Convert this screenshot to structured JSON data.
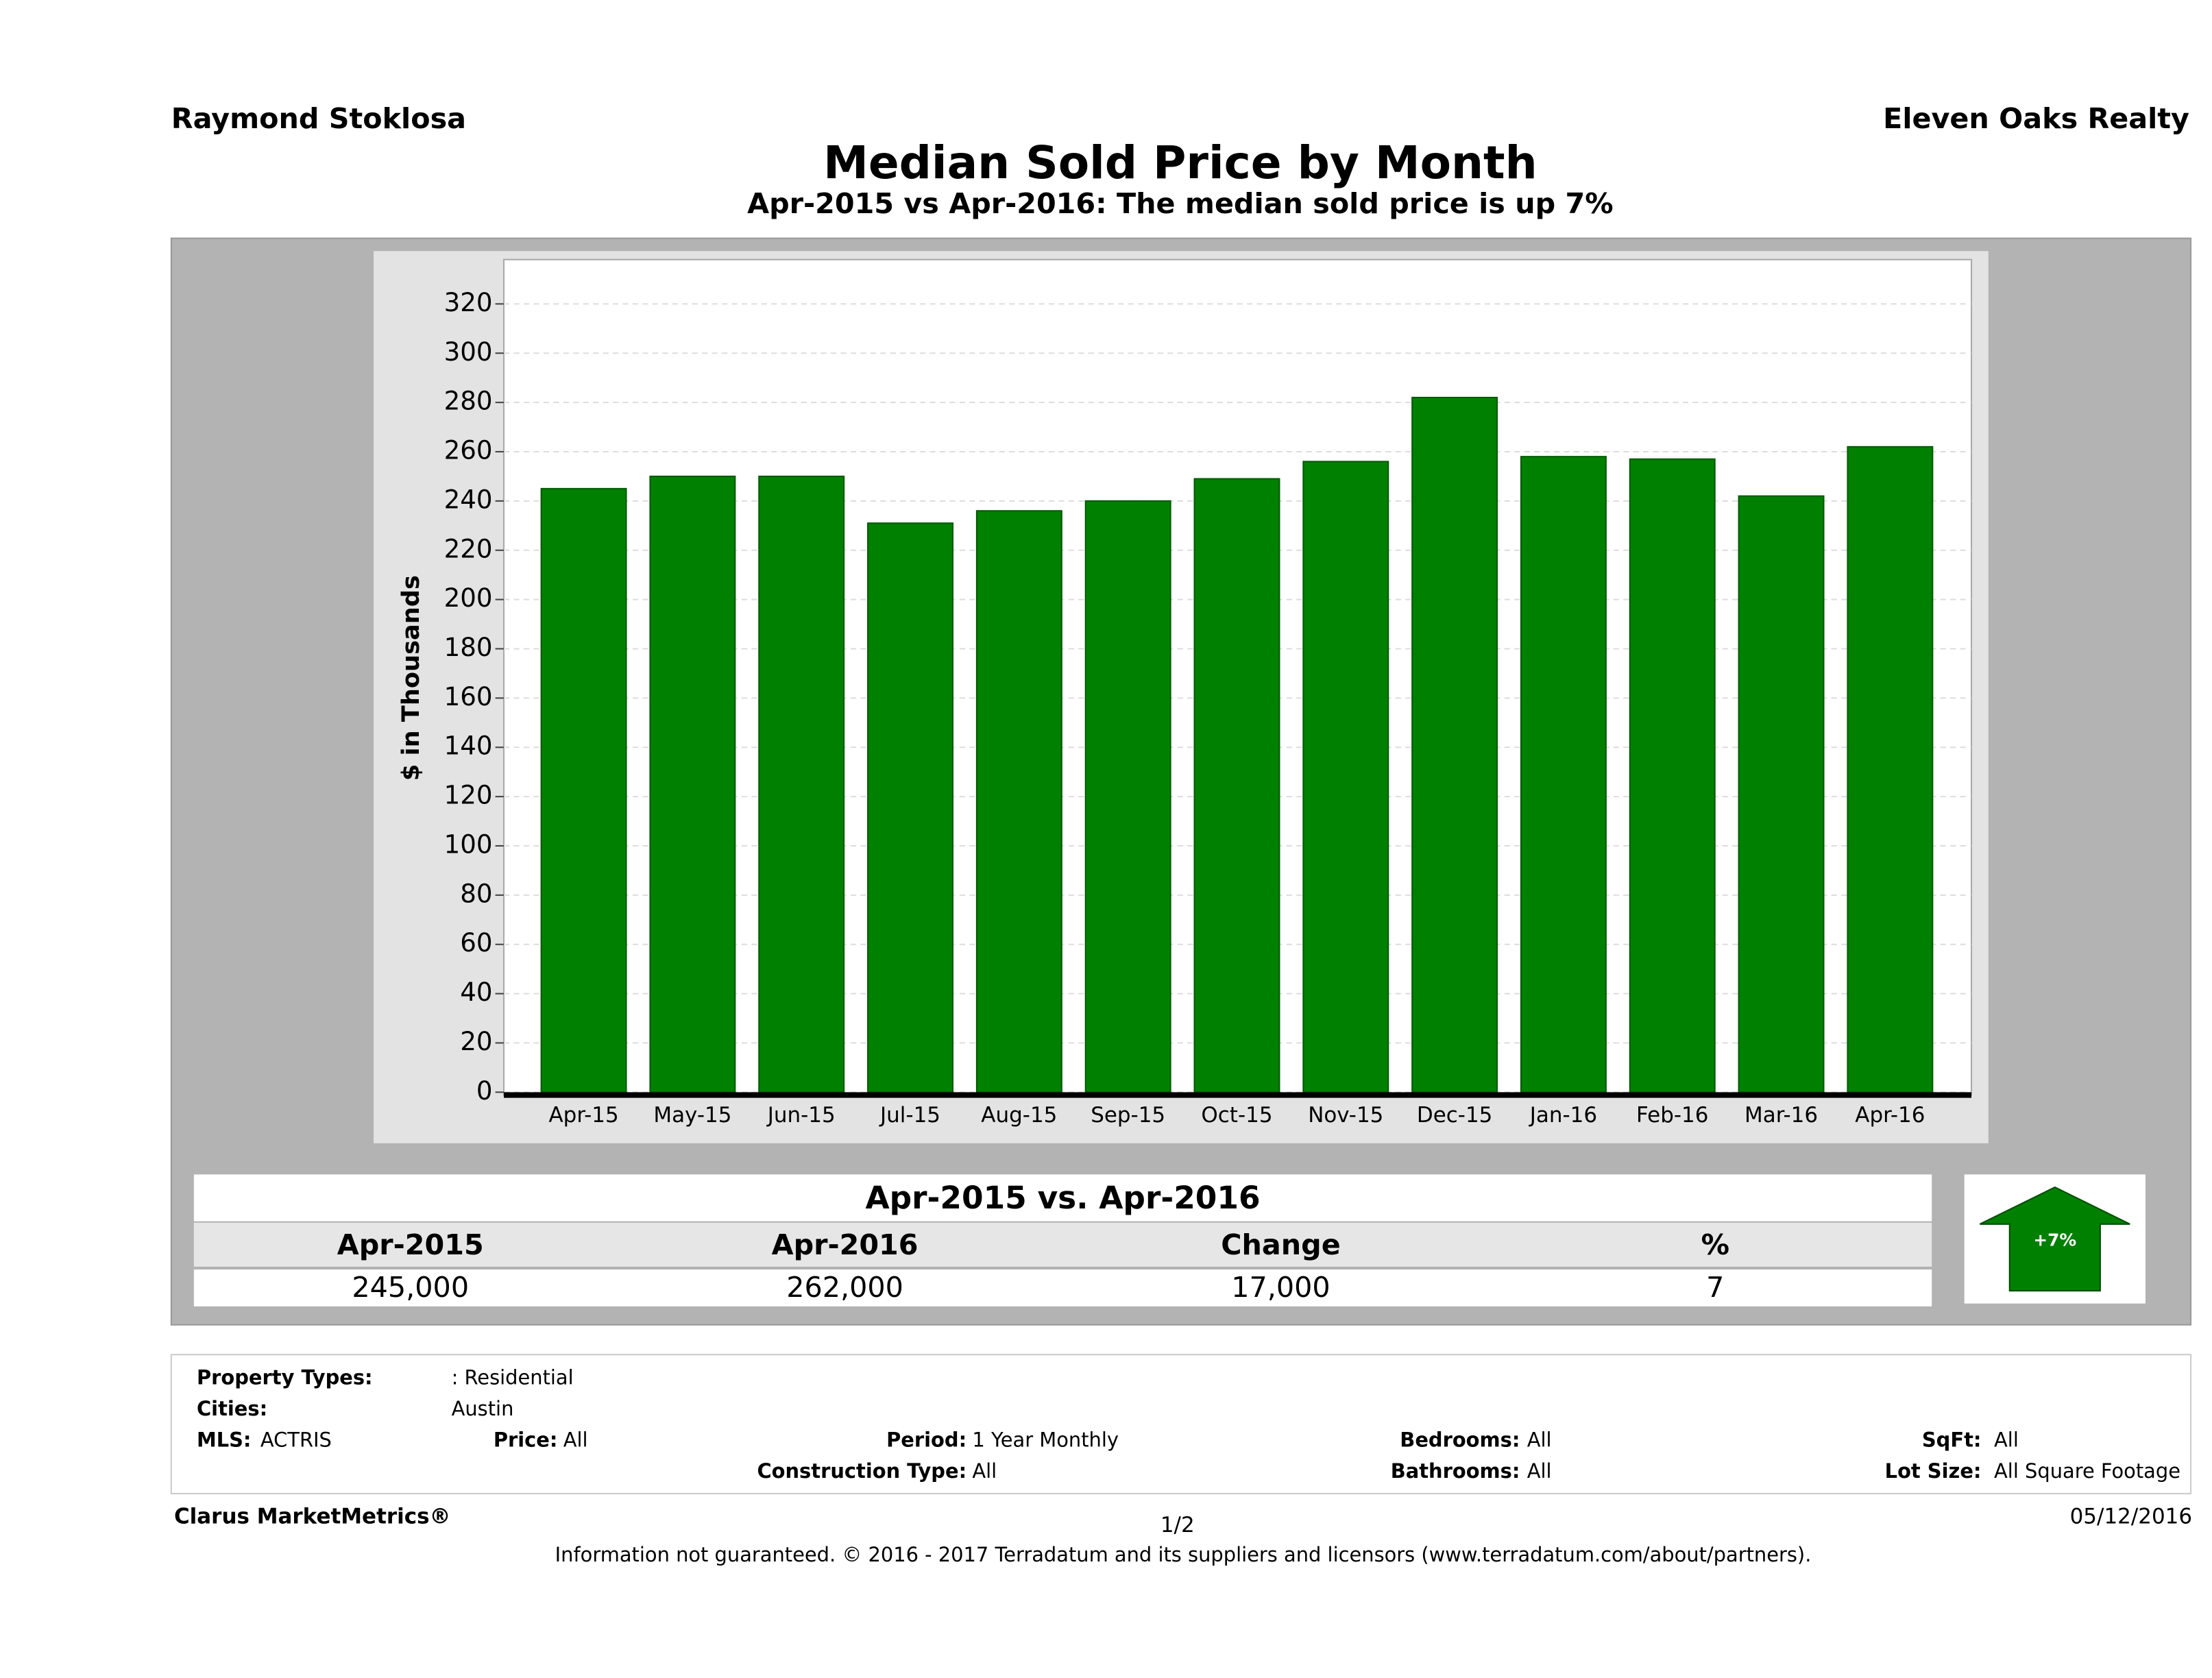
{
  "header": {
    "agent": "Raymond Stoklosa",
    "company": "Eleven Oaks Realty"
  },
  "chart_data": {
    "type": "bar",
    "title": "Median Sold Price by Month",
    "subtitle": "Apr-2015 vs Apr-2016: The median sold price is up 7%",
    "y_label": "$ in Thousands",
    "categories": [
      "Apr-15",
      "May-15",
      "Jun-15",
      "Jul-15",
      "Aug-15",
      "Sep-15",
      "Oct-15",
      "Nov-15",
      "Dec-15",
      "Jan-16",
      "Feb-16",
      "Mar-16",
      "Apr-16"
    ],
    "values": [
      245,
      250,
      250,
      231,
      236,
      240,
      249,
      256,
      282,
      258,
      257,
      242,
      262
    ],
    "color": "#008000",
    "ylim": [
      0,
      338
    ],
    "yticks": [
      0,
      20,
      40,
      60,
      80,
      100,
      120,
      140,
      160,
      180,
      200,
      220,
      240,
      260,
      280,
      300,
      320
    ],
    "grid": true
  },
  "summary": {
    "title": "Apr-2015 vs. Apr-2016",
    "columns": [
      "Apr-2015",
      "Apr-2016",
      "Change",
      "%"
    ],
    "values": [
      "245,000",
      "262,000",
      "17,000",
      "7"
    ],
    "badge": "+7%"
  },
  "filters": {
    "property_types_label": "Property Types:",
    "property_types": ": Residential",
    "cities_label": "Cities:",
    "cities": "Austin",
    "mls_label": "MLS:",
    "mls": "ACTRIS",
    "price_label": "Price:",
    "price": "All",
    "period_label": "Period:",
    "period": "1 Year Monthly",
    "bedrooms_label": "Bedrooms:",
    "bedrooms": "All",
    "sqft_label": "SqFt:",
    "sqft": "All",
    "construction_label": "Construction Type:",
    "construction": "All",
    "bathrooms_label": "Bathrooms:",
    "bathrooms": "All",
    "lot_label": "Lot Size:",
    "lot": "All Square Footage"
  },
  "footer": {
    "brand": "Clarus MarketMetrics®",
    "page": "1/2",
    "date": "05/12/2016",
    "disclaimer": "Information not guaranteed. © 2016 - 2017 Terradatum and its suppliers and licensors (www.terradatum.com/about/partners)."
  }
}
